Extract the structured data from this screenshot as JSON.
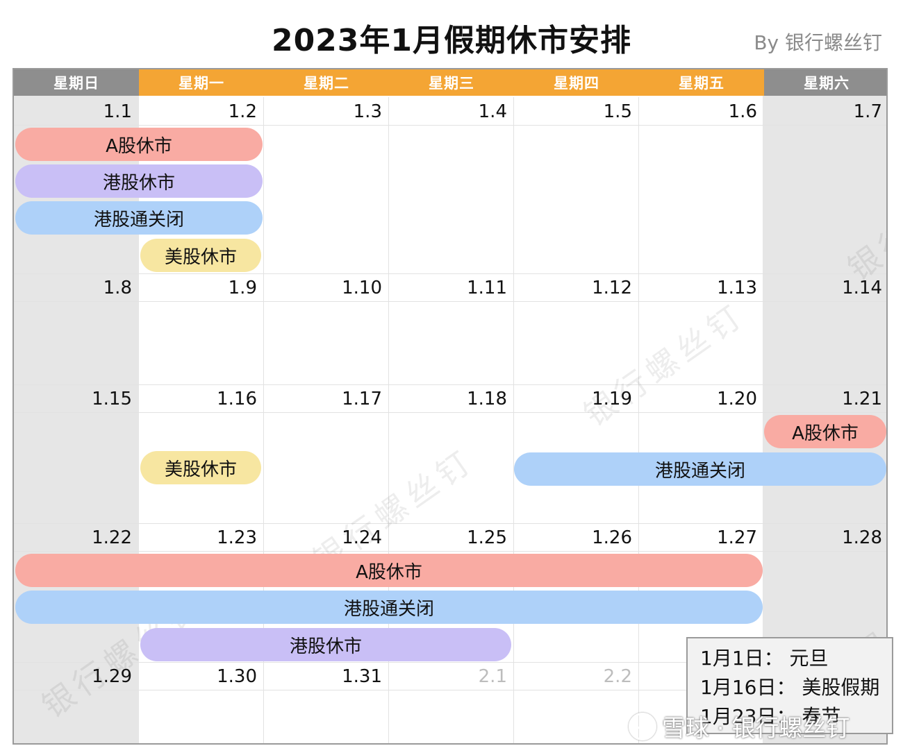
{
  "title": "2023年1月假期休市安排",
  "byline": "By 银行螺丝钉",
  "weekdays": [
    "星期日",
    "星期一",
    "星期二",
    "星期三",
    "星期四",
    "星期五",
    "星期六"
  ],
  "weeks": [
    [
      "1.1",
      "1.2",
      "1.3",
      "1.4",
      "1.5",
      "1.6",
      "1.7"
    ],
    [
      "1.8",
      "1.9",
      "1.10",
      "1.11",
      "1.12",
      "1.13",
      "1.14"
    ],
    [
      "1.15",
      "1.16",
      "1.17",
      "1.18",
      "1.19",
      "1.20",
      "1.21"
    ],
    [
      "1.22",
      "1.23",
      "1.24",
      "1.25",
      "1.26",
      "1.27",
      "1.28"
    ],
    [
      "1.29",
      "1.30",
      "1.31",
      "2.1",
      "2.2",
      "",
      ""
    ]
  ],
  "events": {
    "w1_a": "A股休市",
    "w1_hk": "港股休市",
    "w1_connect": "港股通关闭",
    "w1_us": "美股休市",
    "w3_us": "美股休市",
    "w3_a": "A股休市",
    "w3_connect": "港股通关闭",
    "w4_a": "A股休市",
    "w4_connect": "港股通关闭",
    "w4_hk": "港股休市"
  },
  "legend": [
    "1月1日： 元旦",
    "1月16日： 美股假期",
    "1月23日： 春节"
  ],
  "watermark": "银行螺丝钉",
  "footer": {
    "text": "雪球 · 银行螺丝钉"
  },
  "colors": {
    "header_weekday": "#f4a534",
    "header_weekend": "#8e8e8e",
    "a_share": "#f9aba3",
    "hk_stock": "#c9bff6",
    "connect": "#aed1f9",
    "us_stock": "#f7e6a1"
  }
}
